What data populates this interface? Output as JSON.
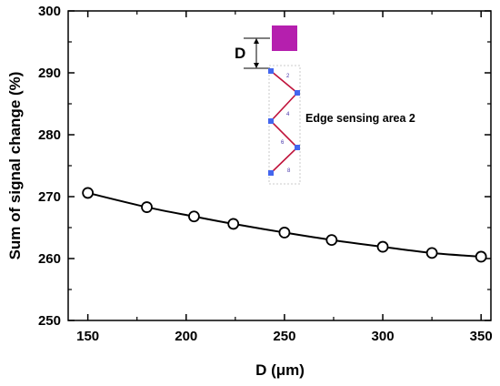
{
  "chart_data": {
    "type": "line",
    "title": "",
    "xlabel": "D (μm)",
    "ylabel": "Sum of signal change (%)",
    "xlim": [
      140,
      355
    ],
    "ylim": [
      250,
      300
    ],
    "xticks": [
      "150",
      "200",
      "250",
      "300",
      "350"
    ],
    "yticks": [
      "250",
      "260",
      "270",
      "280",
      "290",
      "300"
    ],
    "grid": false,
    "legend": "none",
    "series": [
      {
        "x": [
          150,
          180,
          204,
          224,
          250,
          274,
          300,
          325,
          350
        ],
        "y": [
          270.6,
          268.3,
          266.8,
          265.6,
          264.2,
          263.0,
          261.9,
          260.9,
          260.3
        ]
      }
    ],
    "annotations": {
      "inset_label": "Edge sensing area 2",
      "distance_label": "D",
      "inset_numbers": [
        "2",
        "4",
        "6",
        "8"
      ]
    }
  },
  "colors": {
    "line": "#000000",
    "marker_fill": "#ffffff",
    "inset_pad": "#b51fae",
    "inset_trace": "#c0143c",
    "inset_electrode": "#4466ee"
  }
}
